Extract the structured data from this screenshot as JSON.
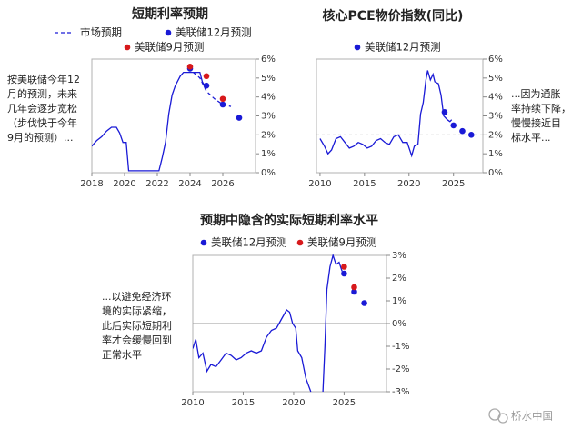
{
  "chart_data": [
    {
      "type": "line",
      "title": "短期利率预期",
      "xlim": [
        2018,
        2028
      ],
      "xticks": [
        2018,
        2020,
        2022,
        2024,
        2026
      ],
      "ylim": [
        0,
        6
      ],
      "yticks": [
        {
          "value": 0,
          "label": "0%"
        },
        {
          "value": 1,
          "label": "1%"
        },
        {
          "value": 2,
          "label": "2%"
        },
        {
          "value": 3,
          "label": "3%"
        },
        {
          "value": 4,
          "label": "4%"
        },
        {
          "value": 5,
          "label": "5%"
        },
        {
          "value": 6,
          "label": "6%"
        }
      ],
      "annotation": [
        "按美联储今年12",
        "月的预测，未来",
        "几年会逐步宽松",
        "（步伐快于今年",
        "9月的预测）..."
      ],
      "series": [
        {
          "style": "solid",
          "color": "#1a1ad6",
          "x": [
            2018.0,
            2018.3,
            2018.6,
            2018.9,
            2019.2,
            2019.5,
            2019.7,
            2019.9,
            2020.1,
            2020.25,
            2021.0,
            2022.1,
            2022.3,
            2022.5,
            2022.7,
            2022.9,
            2023.1,
            2023.4,
            2023.6,
            2024.0,
            2024.6,
            2024.75,
            2024.95
          ],
          "values": [
            1.4,
            1.7,
            1.9,
            2.2,
            2.4,
            2.4,
            2.1,
            1.6,
            1.6,
            0.1,
            0.1,
            0.1,
            0.8,
            1.6,
            3.1,
            4.1,
            4.6,
            5.1,
            5.3,
            5.3,
            5.3,
            4.8,
            4.5
          ]
        },
        {
          "name": "市场预期",
          "style": "dashed",
          "color": "#1a1ad6",
          "x": [
            2024.2,
            2024.6,
            2025.0,
            2025.5,
            2026.0,
            2026.5
          ],
          "values": [
            5.3,
            5.0,
            4.3,
            3.9,
            3.6,
            3.5
          ]
        },
        {
          "name": "美联储12月预测",
          "style": "dots",
          "color": "#1a1ad6",
          "x": [
            2024,
            2025,
            2026,
            2027
          ],
          "values": [
            5.5,
            4.6,
            3.6,
            2.9
          ]
        },
        {
          "name": "美联储9月预测",
          "style": "dots",
          "color": "#d7191c",
          "x": [
            2024,
            2025,
            2026
          ],
          "values": [
            5.6,
            5.1,
            3.9
          ]
        }
      ]
    },
    {
      "type": "line",
      "title": "核心PCE物价指数(同比)",
      "xlim": [
        2009.6,
        2028.3
      ],
      "xticks": [
        2010,
        2015,
        2020,
        2025
      ],
      "ylim": [
        0,
        6
      ],
      "yticks": [
        {
          "value": 0,
          "label": "0%"
        },
        {
          "value": 1,
          "label": "1%"
        },
        {
          "value": 2,
          "label": "2%"
        },
        {
          "value": 3,
          "label": "3%"
        },
        {
          "value": 4,
          "label": "4%"
        },
        {
          "value": 5,
          "label": "5%"
        },
        {
          "value": 6,
          "label": "6%"
        }
      ],
      "reference_line": {
        "value": 2,
        "style": "dashed",
        "color": "#999999"
      },
      "annotation": [
        "...因为通胀",
        "率持续下降，",
        "慢慢接近目",
        "标水平..."
      ],
      "series": [
        {
          "style": "solid",
          "color": "#1a1ad6",
          "x": [
            2010.0,
            2010.5,
            2010.9,
            2011.3,
            2011.8,
            2012.3,
            2012.8,
            2013.3,
            2013.8,
            2014.3,
            2014.8,
            2015.3,
            2015.8,
            2016.3,
            2016.8,
            2017.3,
            2017.8,
            2018.3,
            2018.8,
            2019.3,
            2019.8,
            2020.3,
            2020.6,
            2021.0,
            2021.3,
            2021.6,
            2021.9,
            2022.1,
            2022.4,
            2022.7,
            2022.9,
            2023.3,
            2023.6,
            2023.9,
            2024.3,
            2024.6,
            2024.8
          ],
          "values": [
            1.8,
            1.4,
            1.0,
            1.2,
            1.8,
            1.9,
            1.6,
            1.3,
            1.4,
            1.6,
            1.5,
            1.3,
            1.4,
            1.7,
            1.8,
            1.6,
            1.5,
            1.9,
            2.0,
            1.6,
            1.6,
            0.9,
            1.4,
            1.5,
            3.1,
            3.7,
            4.9,
            5.4,
            4.9,
            5.2,
            4.8,
            4.7,
            4.1,
            3.0,
            2.8,
            2.7,
            2.8
          ]
        },
        {
          "name": "美联储12月预测",
          "style": "dots",
          "color": "#1a1ad6",
          "x": [
            2024,
            2025,
            2026,
            2027
          ],
          "values": [
            3.2,
            2.5,
            2.2,
            2.0
          ]
        }
      ]
    },
    {
      "type": "line",
      "title": "预期中隐含的实际短期利率水平",
      "xlim": [
        2010,
        2029.2
      ],
      "xticks": [
        2010,
        2015,
        2020,
        2025
      ],
      "ylim": [
        -3,
        3
      ],
      "yticks": [
        {
          "value": -3,
          "label": "-3%"
        },
        {
          "value": -2,
          "label": "-2%"
        },
        {
          "value": -1,
          "label": "-1%"
        },
        {
          "value": 0,
          "label": "0%"
        },
        {
          "value": 1,
          "label": "1%"
        },
        {
          "value": 2,
          "label": "2%"
        },
        {
          "value": 3,
          "label": "3%"
        }
      ],
      "reference_line": {
        "value": 0,
        "style": "solid",
        "color": "#999999"
      },
      "annotation": [
        "...以避免经济环",
        "境的实际紧缩，",
        "此后实际短期利",
        "率才会缓慢回到",
        "正常水平"
      ],
      "series": [
        {
          "style": "solid",
          "color": "#1a1ad6",
          "x": [
            2010.0,
            2010.3,
            2010.6,
            2011.0,
            2011.4,
            2011.8,
            2012.3,
            2012.8,
            2013.3,
            2013.8,
            2014.3,
            2014.8,
            2015.3,
            2015.8,
            2016.3,
            2016.8,
            2017.3,
            2017.8,
            2018.3,
            2018.8,
            2019.3,
            2019.6,
            2019.9,
            2020.2,
            2020.4,
            2020.8,
            2021.2,
            2021.7,
            2022.0,
            2022.9,
            2023.1,
            2023.3,
            2023.6,
            2023.9,
            2024.2,
            2024.5,
            2024.8
          ],
          "values": [
            -1.1,
            -0.7,
            -1.5,
            -1.3,
            -2.1,
            -1.8,
            -1.9,
            -1.6,
            -1.3,
            -1.4,
            -1.6,
            -1.5,
            -1.3,
            -1.2,
            -1.3,
            -1.2,
            -0.6,
            -0.3,
            -0.2,
            0.2,
            0.6,
            0.5,
            0.0,
            -0.2,
            -1.2,
            -1.5,
            -2.4,
            -3.0,
            null,
            -3.0,
            -1.0,
            1.5,
            2.5,
            3.0,
            2.6,
            2.7,
            2.3
          ]
        },
        {
          "name": "美联储12月预测",
          "style": "dots",
          "color": "#1a1ad6",
          "x": [
            2025,
            2026,
            2027
          ],
          "values": [
            2.2,
            1.4,
            0.9
          ]
        },
        {
          "name": "美联储9月预测",
          "style": "dots",
          "color": "#d7191c",
          "x": [
            2025,
            2026
          ],
          "values": [
            2.5,
            1.6
          ]
        }
      ]
    }
  ],
  "watermark": "桥水中国"
}
